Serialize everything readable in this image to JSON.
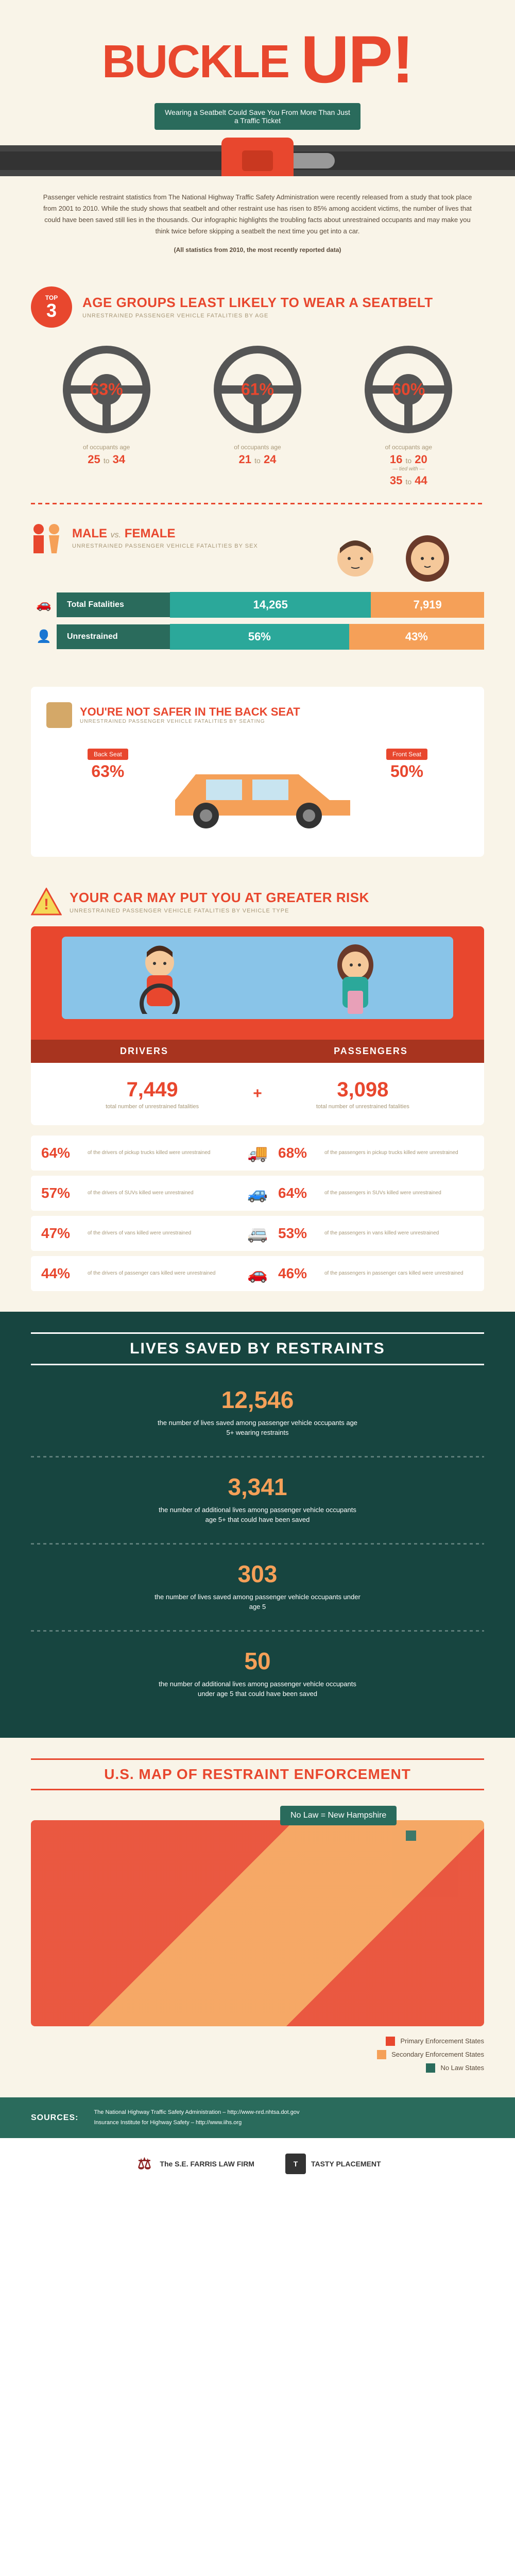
{
  "hero": {
    "title_a": "BUCKLE",
    "title_b": "UP!",
    "subtitle": "Wearing a Seatbelt Could Save You From More Than Just a Traffic Ticket"
  },
  "intro": {
    "text": "Passenger vehicle restraint statistics from The National Highway Traffic Safety Administration were recently released from a study that took place from 2001 to 2010. While the study shows that seatbelt and other restraint use has risen to 85% among accident victims, the number of lives that could have been saved still lies in the thousands. Our infographic highlights the troubling facts about unrestrained occupants and may make you think twice before skipping a seatbelt the next time you get into a car.",
    "note": "(All statistics from 2010, the most recently reported data)"
  },
  "age_section": {
    "badge_top": "TOP",
    "badge_num": "3",
    "title": "AGE GROUPS LEAST LIKELY TO WEAR A SEATBELT",
    "subtitle": "UNRESTRAINED PASSENGER VEHICLE FATALITIES BY AGE",
    "groups": [
      {
        "pct": "63%",
        "label": "of occupants age",
        "age_a": "25",
        "age_b": "34",
        "tied": ""
      },
      {
        "pct": "61%",
        "label": "of occupants age",
        "age_a": "21",
        "age_b": "24",
        "tied": ""
      },
      {
        "pct": "60%",
        "label": "of occupants age",
        "age_a": "16",
        "age_b": "20",
        "tied": "tied with",
        "age2_a": "35",
        "age2_b": "44"
      }
    ]
  },
  "mf": {
    "title_a": "MALE",
    "vs": "vs.",
    "title_b": "FEMALE",
    "subtitle": "UNRESTRAINED PASSENGER VEHICLE FATALITIES BY SEX",
    "rows": [
      {
        "label": "Total Fatalities",
        "m": "14,265",
        "f": "7,919",
        "m_width": 64,
        "f_width": 36
      },
      {
        "label": "Unrestrained",
        "m": "56%",
        "f": "43%",
        "m_width": 57,
        "f_width": 43
      }
    ]
  },
  "backseat": {
    "title": "YOU'RE NOT SAFER IN THE BACK SEAT",
    "subtitle": "UNRESTRAINED PASSENGER VEHICLE FATALITIES BY SEATING",
    "back_label": "Back Seat",
    "back_pct": "63%",
    "front_label": "Front Seat",
    "front_pct": "50%"
  },
  "risk": {
    "title": "YOUR CAR MAY PUT YOU AT GREATER RISK",
    "subtitle": "UNRESTRAINED PASSENGER VEHICLE FATALITIES BY VEHICLE TYPE",
    "drivers_label": "DRIVERS",
    "passengers_label": "PASSENGERS",
    "drivers_num": "7,449",
    "passengers_num": "3,098",
    "total_desc": "total number of unrestrained fatalities",
    "vehicles": [
      {
        "d_pct": "64%",
        "d_desc": "of the drivers of pickup trucks killed were unrestrained",
        "p_pct": "68%",
        "p_desc": "of the passengers in pickup trucks killed were unrestrained",
        "icon": "🚚"
      },
      {
        "d_pct": "57%",
        "d_desc": "of the drivers of SUVs killed were unrestrained",
        "p_pct": "64%",
        "p_desc": "of the passengers in SUVs killed were unrestrained",
        "icon": "🚙"
      },
      {
        "d_pct": "47%",
        "d_desc": "of the drivers of vans killed were unrestrained",
        "p_pct": "53%",
        "p_desc": "of the passengers in vans killed were unrestrained",
        "icon": "🚐"
      },
      {
        "d_pct": "44%",
        "d_desc": "of the drivers of passenger cars killed were unrestrained",
        "p_pct": "46%",
        "p_desc": "of the passengers in passenger cars killed were unrestrained",
        "icon": "🚗"
      }
    ]
  },
  "lives": {
    "title": "LIVES SAVED BY RESTRAINTS",
    "items": [
      {
        "num": "12,546",
        "desc": "the number of lives saved among passenger vehicle occupants age 5+ wearing restraints"
      },
      {
        "num": "3,341",
        "desc": "the number of additional lives among passenger vehicle occupants age 5+ that could have been saved"
      },
      {
        "num": "303",
        "desc": "the number of lives saved among passenger vehicle occupants under age 5"
      },
      {
        "num": "50",
        "desc": "the number of additional lives among passenger vehicle occupants under age 5 that could have been saved"
      }
    ]
  },
  "map": {
    "title": "U.S. MAP OF RESTRAINT ENFORCEMENT",
    "callout": "No Law = New Hampshire",
    "legend": [
      {
        "color": "#e8472e",
        "label": "Primary Enforcement States"
      },
      {
        "color": "#f5a058",
        "label": "Secondary Enforcement States"
      },
      {
        "color": "#2a6b5c",
        "label": "No Law States"
      }
    ]
  },
  "sources": {
    "label": "SOURCES:",
    "items": [
      "The National Highway Traffic Safety Administration – http://www-nrd.nhtsa.dot.gov",
      "Insurance Institute for Highway Safety – http://www.iihs.org"
    ]
  },
  "footer": {
    "logo1": "The S.E. FARRIS LAW FIRM",
    "logo2": "TASTY PLACEMENT"
  },
  "colors": {
    "primary": "#e8472e",
    "teal": "#2a6b5c",
    "teal_light": "#2ba89a",
    "orange": "#f5a058",
    "cream": "#f9f4e8",
    "tan": "#a89878"
  }
}
